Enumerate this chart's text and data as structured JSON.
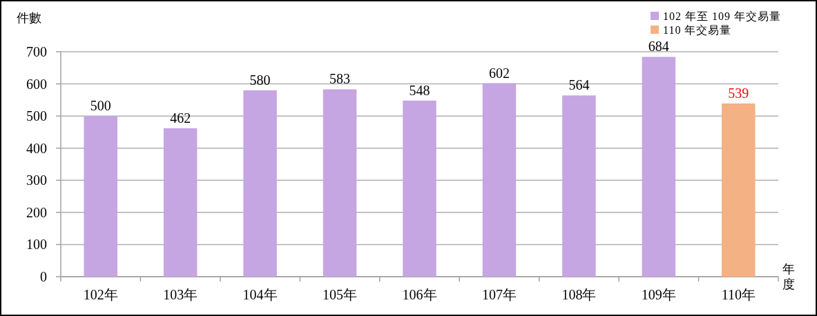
{
  "chart_data": {
    "type": "bar",
    "ylabel": "件數",
    "xlabel": "年度",
    "categories": [
      "102年",
      "103年",
      "104年",
      "105年",
      "106年",
      "107年",
      "108年",
      "109年",
      "110年"
    ],
    "series": [
      {
        "name": "102 年至 109 年交易量",
        "color": "#c6a5e3",
        "values": [
          500,
          462,
          580,
          583,
          548,
          602,
          564,
          684,
          null
        ]
      },
      {
        "name": "110 年交易量",
        "color": "#f4b183",
        "values": [
          null,
          null,
          null,
          null,
          null,
          null,
          null,
          null,
          539
        ]
      }
    ],
    "ylim": [
      0,
      700
    ],
    "yticks": [
      0,
      100,
      200,
      300,
      400,
      500,
      600,
      700
    ],
    "grid": "y",
    "legend": "top right",
    "data_labels": true
  }
}
